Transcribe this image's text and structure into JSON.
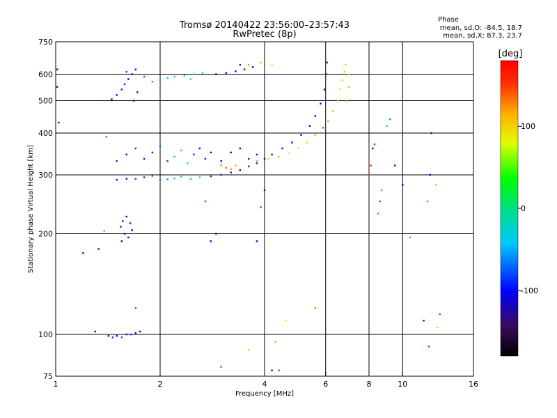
{
  "chart_data": {
    "type": "scatter",
    "title": "Tromsø 20140422 23:56:00–23:57:43",
    "subtitle": "RwPretec (8p)",
    "xlabel": "Frequency [MHz]",
    "ylabel": "Stationary phase Virtual Height [km]",
    "x_scale": "log",
    "y_scale": "log",
    "xlim": [
      1,
      16
    ],
    "ylim": [
      75,
      750
    ],
    "x_ticks": [
      1,
      2,
      4,
      6,
      8,
      10,
      16
    ],
    "x_tick_labels": [
      "1",
      "2",
      "4",
      "6",
      "8",
      "10",
      "16"
    ],
    "y_ticks": [
      75,
      100,
      200,
      300,
      400,
      500,
      600,
      750
    ],
    "y_tick_labels": [
      "75",
      "100",
      "200",
      "300",
      "400",
      "500",
      "600",
      "750"
    ],
    "grid": true,
    "phase_info": {
      "heading": "Phase",
      "line_o": "mean, sd,O: -84.5, 18.7",
      "line_x": "mean, sd,X: 87.3, 23.7"
    },
    "colorbar": {
      "label": "[deg]",
      "range": [
        -180,
        180
      ],
      "ticks": [
        100,
        0,
        -100
      ],
      "tick_labels": [
        "100",
        "0",
        "-100"
      ]
    },
    "series": [
      {
        "points": [
          [
            1.02,
            430,
            -100
          ],
          [
            1.01,
            550,
            -110
          ],
          [
            1.01,
            620,
            -100
          ],
          [
            1.2,
            175,
            -100
          ],
          [
            1.33,
            180,
            -120
          ],
          [
            1.38,
            204,
            -20
          ],
          [
            1.4,
            390,
            150
          ],
          [
            1.3,
            102,
            -110
          ],
          [
            1.42,
            99,
            -100
          ],
          [
            1.46,
            98,
            -90
          ],
          [
            1.5,
            99,
            -100
          ],
          [
            1.55,
            98,
            -80
          ],
          [
            1.6,
            100,
            -100
          ],
          [
            1.65,
            100,
            -90
          ],
          [
            1.7,
            101,
            -100
          ],
          [
            1.75,
            102,
            -95
          ],
          [
            1.54,
            210,
            -110
          ],
          [
            1.56,
            218,
            -120
          ],
          [
            1.58,
            200,
            -100
          ],
          [
            1.6,
            225,
            -100
          ],
          [
            1.62,
            195,
            -110
          ],
          [
            1.55,
            190,
            -100
          ],
          [
            1.64,
            215,
            -95
          ],
          [
            1.66,
            205,
            -100
          ],
          [
            1.45,
            505,
            -110
          ],
          [
            1.5,
            520,
            -100
          ],
          [
            1.55,
            540,
            -100
          ],
          [
            1.58,
            560,
            -90
          ],
          [
            1.62,
            580,
            -100
          ],
          [
            1.66,
            600,
            -110
          ],
          [
            1.7,
            620,
            -100
          ],
          [
            1.68,
            500,
            -95
          ],
          [
            1.72,
            530,
            -100
          ],
          [
            1.6,
            610,
            -80
          ],
          [
            1.8,
            590,
            -70
          ],
          [
            1.9,
            570,
            -60
          ],
          [
            2.0,
            575,
            -50
          ],
          [
            2.1,
            585,
            -40
          ],
          [
            2.2,
            590,
            -30
          ],
          [
            2.35,
            595,
            -25
          ],
          [
            2.5,
            600,
            -20
          ],
          [
            2.65,
            605,
            -30
          ],
          [
            2.45,
            580,
            -10
          ],
          [
            2.9,
            600,
            -110
          ],
          [
            3.1,
            605,
            -105
          ],
          [
            3.3,
            612,
            -100
          ],
          [
            3.5,
            620,
            -105
          ],
          [
            3.7,
            630,
            -100
          ],
          [
            3.4,
            640,
            -90
          ],
          [
            3.9,
            650,
            60
          ],
          [
            4.2,
            640,
            80
          ],
          [
            1.5,
            290,
            -95
          ],
          [
            1.6,
            292,
            -100
          ],
          [
            1.7,
            292,
            -85
          ],
          [
            1.8,
            295,
            -90
          ],
          [
            1.9,
            298,
            -80
          ],
          [
            2.0,
            290,
            -70
          ],
          [
            2.1,
            291,
            -60
          ],
          [
            2.2,
            293,
            -40
          ],
          [
            2.3,
            296,
            -30
          ],
          [
            2.45,
            292,
            -25
          ],
          [
            2.6,
            295,
            -30
          ],
          [
            2.8,
            297,
            -90
          ],
          [
            3.0,
            300,
            -95
          ],
          [
            3.2,
            305,
            -100
          ],
          [
            3.4,
            310,
            -100
          ],
          [
            3.6,
            318,
            -95
          ],
          [
            3.8,
            325,
            -90
          ],
          [
            4.0,
            335,
            -100
          ],
          [
            4.2,
            345,
            -95
          ],
          [
            4.5,
            360,
            -100
          ],
          [
            4.8,
            375,
            -90
          ],
          [
            5.1,
            395,
            -100
          ],
          [
            5.4,
            420,
            -110
          ],
          [
            5.6,
            450,
            -100
          ],
          [
            5.8,
            490,
            -105
          ],
          [
            5.95,
            540,
            -110
          ],
          [
            6.02,
            600,
            -115
          ],
          [
            6.05,
            650,
            -110
          ],
          [
            1.5,
            330,
            -90
          ],
          [
            1.6,
            345,
            -100
          ],
          [
            1.7,
            360,
            -85
          ],
          [
            1.8,
            335,
            -95
          ],
          [
            1.9,
            350,
            -100
          ],
          [
            2.0,
            365,
            -70
          ],
          [
            2.1,
            330,
            -80
          ],
          [
            2.2,
            340,
            -40
          ],
          [
            2.3,
            355,
            -20
          ],
          [
            2.4,
            325,
            -30
          ],
          [
            2.5,
            345,
            -90
          ],
          [
            2.6,
            360,
            -100
          ],
          [
            2.7,
            335,
            -95
          ],
          [
            2.8,
            350,
            -110
          ],
          [
            3.0,
            330,
            -100
          ],
          [
            3.2,
            350,
            -110
          ],
          [
            3.3,
            320,
            120
          ],
          [
            3.4,
            360,
            -100
          ],
          [
            3.6,
            335,
            -90
          ],
          [
            3.8,
            345,
            -95
          ],
          [
            3.0,
            320,
            130
          ],
          [
            3.1,
            315,
            140
          ],
          [
            3.2,
            312,
            120
          ],
          [
            3.8,
            330,
            120
          ],
          [
            4.1,
            335,
            100
          ],
          [
            4.4,
            340,
            60
          ],
          [
            4.7,
            348,
            80
          ],
          [
            5.0,
            360,
            70
          ],
          [
            5.3,
            375,
            90
          ],
          [
            5.6,
            395,
            110
          ],
          [
            5.9,
            415,
            150
          ],
          [
            6.1,
            435,
            120
          ],
          [
            6.3,
            465,
            110
          ],
          [
            6.5,
            500,
            100
          ],
          [
            6.6,
            540,
            90
          ],
          [
            6.7,
            575,
            100
          ],
          [
            6.8,
            610,
            110
          ],
          [
            6.85,
            640,
            100
          ],
          [
            6.9,
            500,
            130
          ],
          [
            7.0,
            550,
            110
          ],
          [
            7.0,
            600,
            90
          ],
          [
            8.0,
            300,
            150
          ],
          [
            8.1,
            320,
            160
          ],
          [
            8.2,
            360,
            -100
          ],
          [
            8.3,
            370,
            170
          ],
          [
            8.5,
            230,
            140
          ],
          [
            8.6,
            250,
            160
          ],
          [
            8.7,
            270,
            -20
          ],
          [
            9.0,
            420,
            -30
          ],
          [
            9.2,
            440,
            -60
          ],
          [
            9.5,
            320,
            -100
          ],
          [
            10.0,
            280,
            -100
          ],
          [
            10.5,
            195,
            130
          ],
          [
            11.5,
            110,
            -110
          ],
          [
            11.8,
            250,
            140
          ],
          [
            12.0,
            300,
            -100
          ],
          [
            12.1,
            400,
            -110
          ],
          [
            12.5,
            280,
            110
          ],
          [
            12.6,
            105,
            90
          ],
          [
            12.8,
            115,
            150
          ],
          [
            11.9,
            92,
            160
          ],
          [
            4.3,
            95,
            120
          ],
          [
            4.4,
            78,
            160
          ],
          [
            4.2,
            78,
            -110
          ],
          [
            3.6,
            90,
            100
          ],
          [
            4.6,
            110,
            80
          ],
          [
            5.6,
            120,
            130
          ],
          [
            3.0,
            80,
            -60
          ],
          [
            2.8,
            190,
            -110
          ],
          [
            2.9,
            200,
            -120
          ],
          [
            2.7,
            250,
            160
          ],
          [
            3.8,
            190,
            -100
          ],
          [
            4.0,
            270,
            -120
          ],
          [
            1.7,
            120,
            150
          ],
          [
            3.9,
            240,
            -70
          ],
          [
            3.6,
            640,
            120
          ]
        ]
      }
    ]
  }
}
